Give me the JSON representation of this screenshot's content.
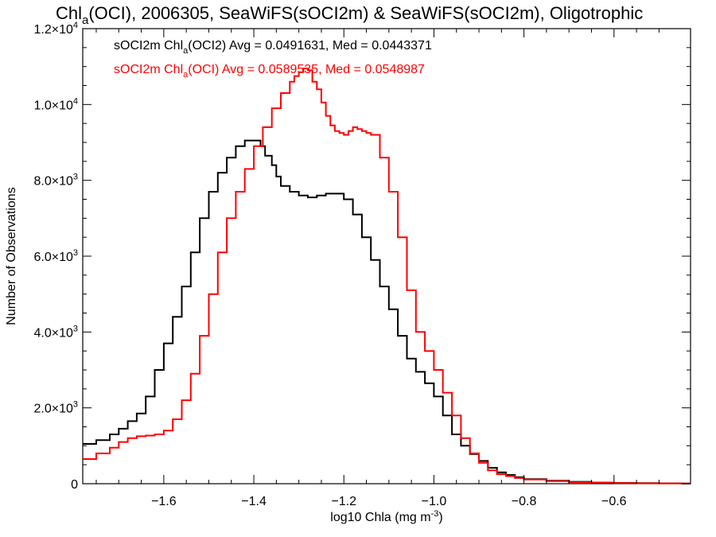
{
  "chart_data": {
    "type": "line",
    "title": "Chl",
    "title_sub": "a",
    "title_rest": "(OCI), 2006305, SeaWiFS(sOCI2m) & SeaWiFS(sOCI2m), Oligotrophic",
    "xlabel_main": "log10 Chla (mg m",
    "xlabel_sup": "-3",
    "xlabel_end": ")",
    "ylabel": "Number of Observations",
    "xlim": [
      -1.78,
      -0.43
    ],
    "ylim": [
      0,
      12000
    ],
    "x_ticks": [
      -1.6,
      -1.4,
      -1.2,
      -1.0,
      -0.8,
      -0.6
    ],
    "x_tick_labels": [
      "−1.6",
      "−1.4",
      "−1.2",
      "−1.0",
      "−0.8",
      "−0.6"
    ],
    "y_ticks": [
      0,
      2000,
      4000,
      6000,
      8000,
      10000,
      12000
    ],
    "y_tick_labels": [
      {
        "mant": "0",
        "exp": ""
      },
      {
        "mant": "2.0×10",
        "exp": "3"
      },
      {
        "mant": "4.0×10",
        "exp": "3"
      },
      {
        "mant": "6.0×10",
        "exp": "3"
      },
      {
        "mant": "8.0×10",
        "exp": "3"
      },
      {
        "mant": "1.0×10",
        "exp": "4"
      },
      {
        "mant": "1.2×10",
        "exp": "4"
      }
    ],
    "legend_placement": "top-left",
    "step_style": "histogram",
    "series": [
      {
        "label_a": "sOCI2m Chl",
        "label_sub": "a",
        "label_b": "(OCI2) Avg = 0.0491631, Med = 0.0443371",
        "color": "#000000",
        "x": [
          -1.78,
          -1.75,
          -1.72,
          -1.7,
          -1.68,
          -1.66,
          -1.64,
          -1.62,
          -1.6,
          -1.58,
          -1.56,
          -1.54,
          -1.52,
          -1.5,
          -1.48,
          -1.46,
          -1.44,
          -1.42,
          -1.4,
          -1.385,
          -1.375,
          -1.36,
          -1.35,
          -1.34,
          -1.32,
          -1.3,
          -1.28,
          -1.26,
          -1.24,
          -1.22,
          -1.2,
          -1.18,
          -1.16,
          -1.14,
          -1.12,
          -1.1,
          -1.08,
          -1.06,
          -1.04,
          -1.02,
          -1.0,
          -0.98,
          -0.96,
          -0.94,
          -0.92,
          -0.9,
          -0.88,
          -0.86,
          -0.84,
          -0.82,
          -0.8,
          -0.75,
          -0.7,
          -0.65,
          -0.6,
          -0.55,
          -0.5,
          -0.45,
          -0.43
        ],
        "values": [
          1050,
          1150,
          1300,
          1450,
          1650,
          1850,
          2300,
          3000,
          3700,
          4400,
          5200,
          6100,
          7000,
          7700,
          8200,
          8600,
          8900,
          9050,
          9050,
          8900,
          8650,
          8400,
          8100,
          7850,
          7700,
          7600,
          7550,
          7600,
          7650,
          7650,
          7500,
          7100,
          6500,
          5900,
          5200,
          4600,
          3900,
          3300,
          2950,
          2650,
          2300,
          1800,
          1300,
          1000,
          780,
          600,
          420,
          300,
          230,
          170,
          120,
          80,
          50,
          30,
          20,
          15,
          10,
          5,
          5
        ]
      },
      {
        "label_a": "sOCI2m Chl",
        "label_sub": "a",
        "label_b": "(OCI) Avg = 0.0589535, Med = 0.0548987",
        "color": "#ff0000",
        "x": [
          -1.78,
          -1.75,
          -1.72,
          -1.7,
          -1.68,
          -1.66,
          -1.64,
          -1.62,
          -1.6,
          -1.58,
          -1.56,
          -1.54,
          -1.52,
          -1.5,
          -1.48,
          -1.46,
          -1.44,
          -1.42,
          -1.4,
          -1.38,
          -1.36,
          -1.34,
          -1.32,
          -1.31,
          -1.3,
          -1.29,
          -1.28,
          -1.27,
          -1.26,
          -1.25,
          -1.24,
          -1.23,
          -1.22,
          -1.21,
          -1.2,
          -1.19,
          -1.18,
          -1.17,
          -1.16,
          -1.15,
          -1.14,
          -1.12,
          -1.1,
          -1.08,
          -1.06,
          -1.04,
          -1.02,
          -1.0,
          -0.98,
          -0.96,
          -0.94,
          -0.92,
          -0.9,
          -0.88,
          -0.86,
          -0.84,
          -0.82,
          -0.8,
          -0.75,
          -0.7,
          -0.65,
          -0.6,
          -0.55,
          -0.5,
          -0.45,
          -0.43
        ],
        "values": [
          650,
          800,
          950,
          1100,
          1200,
          1250,
          1270,
          1300,
          1400,
          1700,
          2200,
          2900,
          3900,
          5000,
          6100,
          7000,
          7700,
          8300,
          8900,
          9400,
          9900,
          10300,
          10600,
          10750,
          10850,
          10950,
          10900,
          10600,
          10400,
          10050,
          9700,
          9450,
          9300,
          9250,
          9200,
          9300,
          9400,
          9350,
          9300,
          9250,
          9200,
          8600,
          7700,
          6500,
          5100,
          4000,
          3500,
          3000,
          2400,
          1800,
          1200,
          800,
          550,
          350,
          250,
          200,
          150,
          110,
          70,
          40,
          25,
          15,
          10,
          8,
          5,
          5
        ]
      }
    ]
  }
}
